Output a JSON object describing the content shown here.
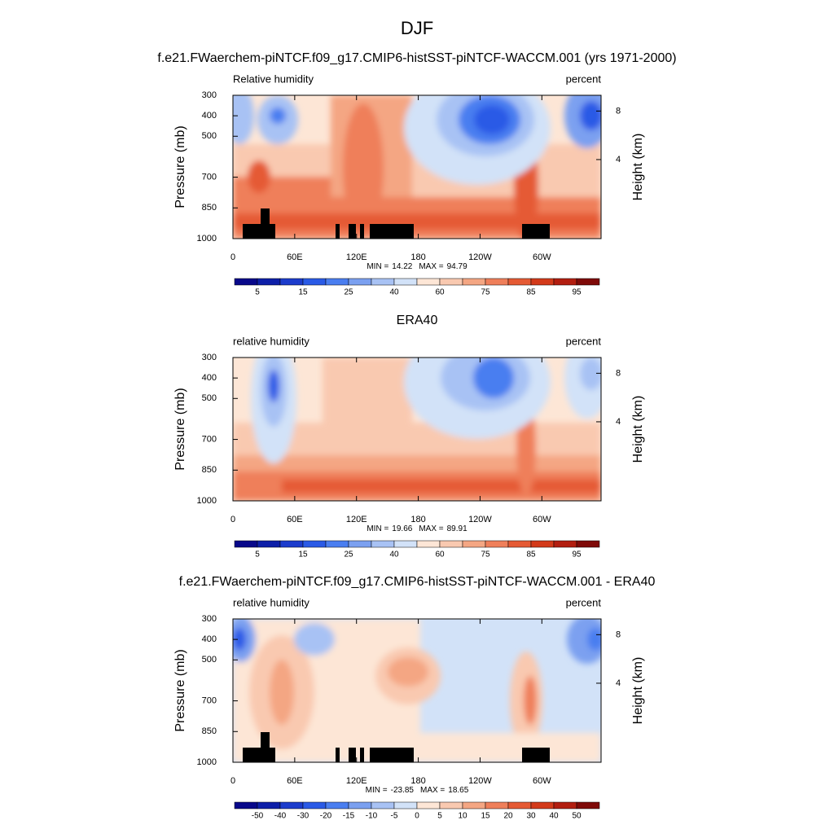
{
  "title": "DJF",
  "chart_data": [
    {
      "type": "contour",
      "title": "f.e21.FWaerchem-piNTCF.f09_g17.CMIP6-histSST-piNTCF-WACCM.001 (yrs 1971-2000)",
      "left_label": "Relative humidity",
      "right_label": "percent",
      "ylabel": "Pressure (mb)",
      "y2label": "Height (km)",
      "xlim": [
        0,
        357.5
      ],
      "xticks": [
        0,
        {
          "value": 60,
          "label": "60E"
        },
        {
          "value": 120,
          "label": "120E"
        },
        180,
        {
          "value": 240,
          "label": "120W"
        },
        {
          "value": 300,
          "label": "60W"
        }
      ],
      "ylim": [
        1000,
        300
      ],
      "yticks": [
        300,
        400,
        500,
        700,
        850,
        1000
      ],
      "y2ticks": [
        4,
        8
      ],
      "min_label": "MIN =",
      "min": 14.22,
      "max_label": "MAX =",
      "max": 94.79,
      "colorbar_labels": [
        5,
        15,
        25,
        40,
        60,
        75,
        85,
        95
      ],
      "colors": [
        "#08088a",
        "#0d1fa8",
        "#1c3ccc",
        "#2a5ae6",
        "#4a7ef0",
        "#7ba0f0",
        "#a8c2f4",
        "#d2e2f8",
        "#fde6d6",
        "#f9c9b0",
        "#f4a683",
        "#ef7f5a",
        "#e55a34",
        "#d33a1a",
        "#b21e10",
        "#7f0a08"
      ]
    },
    {
      "type": "contour",
      "title": "ERA40",
      "left_label": "relative humidity",
      "right_label": "percent",
      "ylabel": "Pressure (mb)",
      "y2label": "Height (km)",
      "xlim": [
        0,
        357.5
      ],
      "xticks": [
        0,
        {
          "value": 60,
          "label": "60E"
        },
        {
          "value": 120,
          "label": "120E"
        },
        180,
        {
          "value": 240,
          "label": "120W"
        },
        {
          "value": 300,
          "label": "60W"
        }
      ],
      "ylim": [
        1000,
        300
      ],
      "yticks": [
        300,
        400,
        500,
        700,
        850,
        1000
      ],
      "y2ticks": [
        4,
        8
      ],
      "min_label": "MIN =",
      "min": 19.66,
      "max_label": "MAX =",
      "max": 89.91,
      "colorbar_labels": [
        5,
        15,
        25,
        40,
        60,
        75,
        85,
        95
      ],
      "colors": [
        "#08088a",
        "#0d1fa8",
        "#1c3ccc",
        "#2a5ae6",
        "#4a7ef0",
        "#7ba0f0",
        "#a8c2f4",
        "#d2e2f8",
        "#fde6d6",
        "#f9c9b0",
        "#f4a683",
        "#ef7f5a",
        "#e55a34",
        "#d33a1a",
        "#b21e10",
        "#7f0a08"
      ]
    },
    {
      "type": "contour",
      "title": "f.e21.FWaerchem-piNTCF.f09_g17.CMIP6-histSST-piNTCF-WACCM.001 - ERA40",
      "left_label": "relative humidity",
      "right_label": "percent",
      "ylabel": "Pressure (mb)",
      "y2label": "Height (km)",
      "xlim": [
        0,
        357.5
      ],
      "xticks": [
        0,
        {
          "value": 60,
          "label": "60E"
        },
        {
          "value": 120,
          "label": "120E"
        },
        180,
        {
          "value": 240,
          "label": "120W"
        },
        {
          "value": 300,
          "label": "60W"
        }
      ],
      "ylim": [
        1000,
        300
      ],
      "yticks": [
        300,
        400,
        500,
        700,
        850,
        1000
      ],
      "y2ticks": [
        4,
        8
      ],
      "min_label": "MIN =",
      "min": -23.85,
      "max_label": "MAX =",
      "max": 18.65,
      "colorbar_labels": [
        -50,
        -40,
        -30,
        -20,
        -15,
        -10,
        -5,
        0,
        5,
        10,
        15,
        20,
        30,
        40,
        50
      ],
      "colors": [
        "#08088a",
        "#0d1fa8",
        "#1c3ccc",
        "#2a5ae6",
        "#4a7ef0",
        "#7ba0f0",
        "#a8c2f4",
        "#d2e2f8",
        "#fde6d6",
        "#f9c9b0",
        "#f4a683",
        "#ef7f5a",
        "#e55a34",
        "#d33a1a",
        "#b21e10",
        "#7f0a08"
      ]
    }
  ]
}
